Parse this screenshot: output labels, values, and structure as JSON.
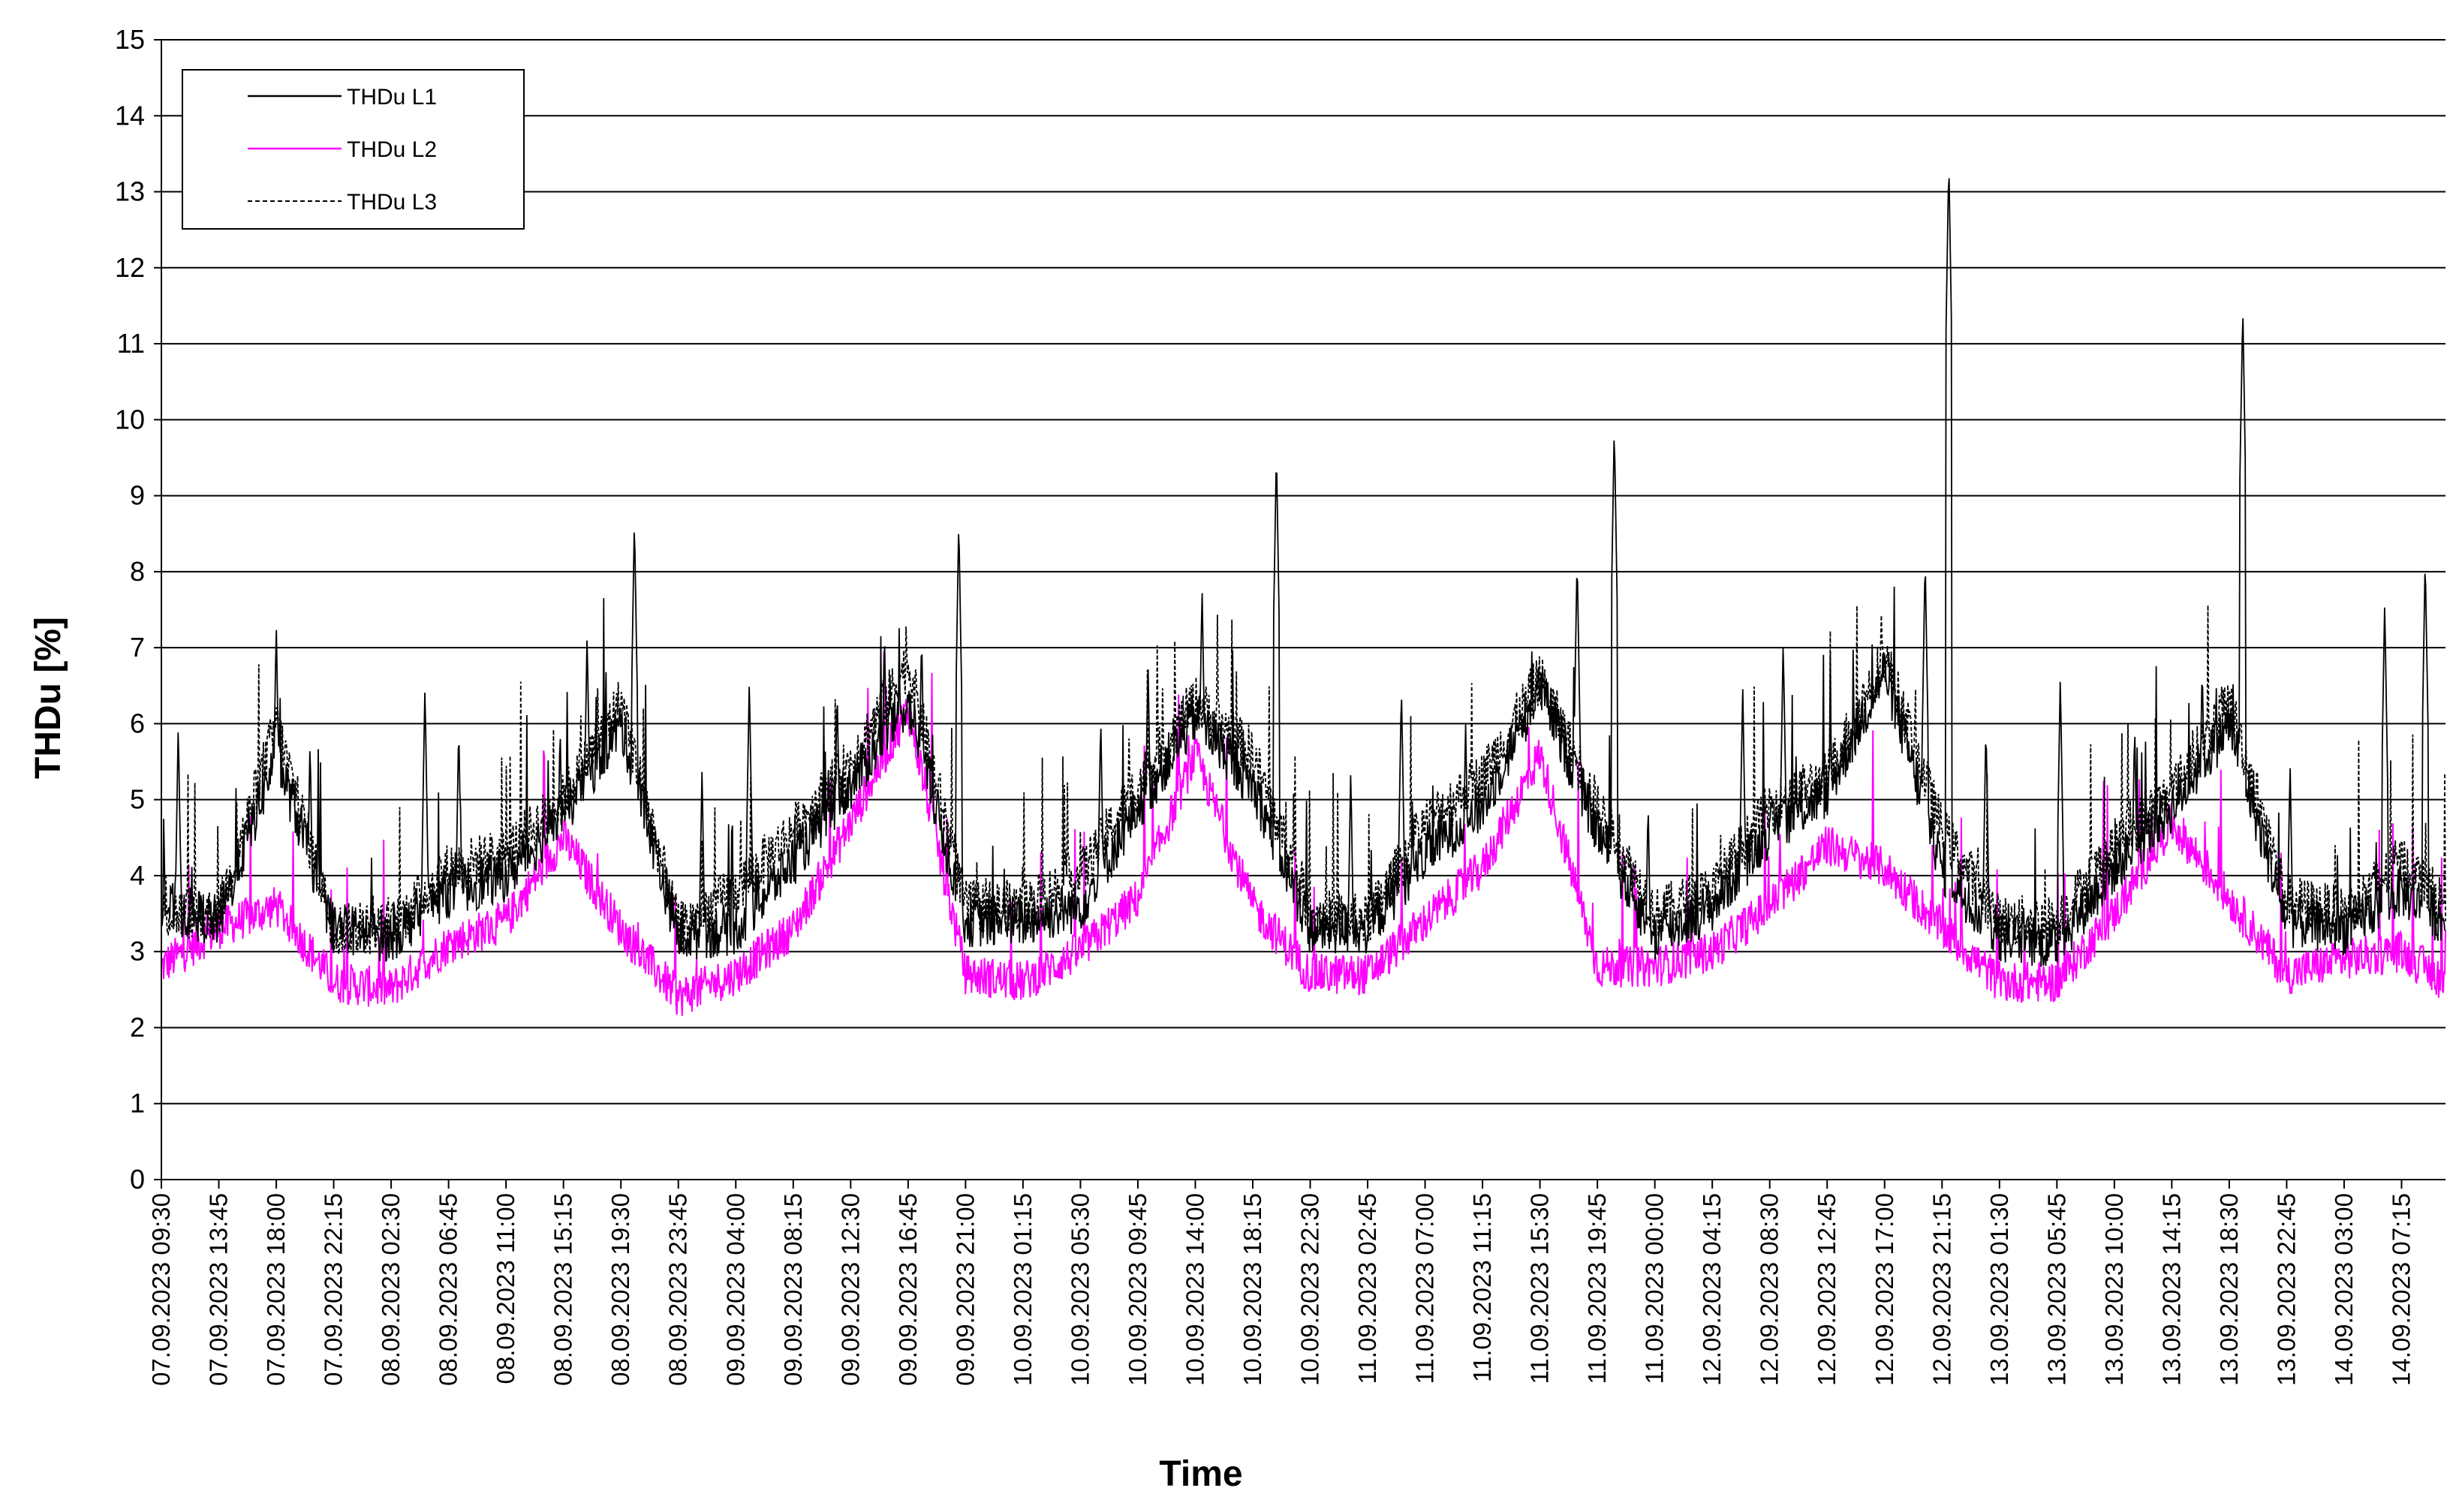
{
  "chart_data": {
    "type": "line",
    "xlabel": "Time",
    "ylabel": "THDu [%]",
    "ylim": [
      0,
      15
    ],
    "yticks": [
      0,
      1,
      2,
      3,
      4,
      5,
      6,
      7,
      8,
      9,
      10,
      11,
      12,
      13,
      14,
      15
    ],
    "xlim": [
      "07.09.2023 09:30",
      "14.09.2023 10:30"
    ],
    "x_tick_interval_minutes": 255,
    "x_tick_labels": [
      "07.09.2023 09:30",
      "07.09.2023 13:45",
      "07.09.2023 18:00",
      "07.09.2023 22:15",
      "08.09.2023 02:30",
      "08.09.2023 06:45",
      "08.09.2023 11:00",
      "08.09.2023 15:15",
      "08.09.2023 19:30",
      "08.09.2023 23:45",
      "09.09.2023 04:00",
      "09.09.2023 08:15",
      "09.09.2023 12:30",
      "09.09.2023 16:45",
      "09.09.2023 21:00",
      "10.09.2023 01:15",
      "10.09.2023 05:30",
      "10.09.2023 09:45",
      "10.09.2023 14:00",
      "10.09.2023 18:15",
      "10.09.2023 22:30",
      "11.09.2023 02:45",
      "11.09.2023 07:00",
      "11.09.2023 11:15",
      "11.09.2023 15:30",
      "11.09.2023 19:45",
      "11.09.2023 00:00",
      "12.09.2023 04:15",
      "12.09.2023 08:30",
      "12.09.2023 12:45",
      "12.09.2023 17:00",
      "12.09.2023 21:15",
      "13.09.2023 01:30",
      "13.09.2023 05:45",
      "13.09.2023 10:00",
      "13.09.2023 14:15",
      "13.09.2023 18:30",
      "13.09.2023 22:45",
      "14.09.2023 03:00",
      "14.09.2023 07:15"
    ],
    "grid": "horizontal",
    "legend_position": "top-left",
    "series": [
      {
        "name": "THDu L1",
        "color": "#000000",
        "style": "solid",
        "baseline": [
          [
            "07.09.2023 09:30",
            3.6
          ],
          [
            "07.09.2023 13:45",
            3.4
          ],
          [
            "07.09.2023 18:00",
            5.6
          ],
          [
            "07.09.2023 22:15",
            3.3
          ],
          [
            "08.09.2023 02:30",
            3.2
          ],
          [
            "08.09.2023 06:45",
            3.8
          ],
          [
            "08.09.2023 11:00",
            4.0
          ],
          [
            "08.09.2023 15:15",
            4.8
          ],
          [
            "08.09.2023 19:30",
            6.0
          ],
          [
            "08.09.2023 23:45",
            3.2
          ],
          [
            "09.09.2023 04:00",
            3.3
          ],
          [
            "09.09.2023 08:15",
            4.2
          ],
          [
            "09.09.2023 12:30",
            5.2
          ],
          [
            "09.09.2023 16:45",
            6.3
          ],
          [
            "09.09.2023 21:00",
            3.4
          ],
          [
            "10.09.2023 01:15",
            3.4
          ],
          [
            "10.09.2023 05:30",
            3.6
          ],
          [
            "10.09.2023 09:45",
            4.9
          ],
          [
            "10.09.2023 14:00",
            6.1
          ],
          [
            "10.09.2023 18:15",
            5.2
          ],
          [
            "10.09.2023 22:30",
            3.3
          ],
          [
            "11.09.2023 02:45",
            3.3
          ],
          [
            "11.09.2023 07:00",
            4.3
          ],
          [
            "11.09.2023 11:15",
            4.9
          ],
          [
            "11.09.2023 15:30",
            6.5
          ],
          [
            "11.09.2023 19:45",
            4.6
          ],
          [
            "11.09.2023 00:00",
            3.2
          ],
          [
            "12.09.2023 04:15",
            3.6
          ],
          [
            "12.09.2023 08:30",
            4.6
          ],
          [
            "12.09.2023 12:45",
            5.1
          ],
          [
            "12.09.2023 17:00",
            6.7
          ],
          [
            "12.09.2023 21:15",
            4.1
          ],
          [
            "13.09.2023 01:30",
            3.2
          ],
          [
            "13.09.2023 05:45",
            3.1
          ],
          [
            "13.09.2023 10:00",
            4.1
          ],
          [
            "13.09.2023 14:15",
            4.9
          ],
          [
            "13.09.2023 18:30",
            6.0
          ],
          [
            "13.09.2023 22:45",
            3.4
          ],
          [
            "14.09.2023 03:00",
            3.3
          ],
          [
            "14.09.2023 07:15",
            3.8
          ],
          [
            "14.09.2023 10:30",
            3.4
          ]
        ],
        "peaks": [
          [
            "07.09.2023 10:45",
            6.0
          ],
          [
            "07.09.2023 18:00",
            7.3
          ],
          [
            "07.09.2023 20:30",
            5.8
          ],
          [
            "08.09.2023 05:00",
            6.5
          ],
          [
            "08.09.2023 07:30",
            6.0
          ],
          [
            "08.09.2023 15:00",
            6.0
          ],
          [
            "08.09.2023 17:00",
            7.2
          ],
          [
            "08.09.2023 20:30",
            8.7
          ],
          [
            "09.09.2023 01:30",
            5.4
          ],
          [
            "09.09.2023 05:00",
            6.6
          ],
          [
            "09.09.2023 11:30",
            6.5
          ],
          [
            "09.09.2023 15:00",
            7.2
          ],
          [
            "09.09.2023 17:45",
            7.2
          ],
          [
            "09.09.2023 20:30",
            8.7
          ],
          [
            "10.09.2023 07:00",
            6.1
          ],
          [
            "10.09.2023 10:30",
            6.8
          ],
          [
            "10.09.2023 14:30",
            7.8
          ],
          [
            "10.09.2023 20:00",
            9.6
          ],
          [
            "11.09.2023 01:30",
            5.4
          ],
          [
            "11.09.2023 05:15",
            6.5
          ],
          [
            "11.09.2023 10:00",
            6.0
          ],
          [
            "11.09.2023 15:30",
            6.6
          ],
          [
            "11.09.2023 18:15",
            8.2
          ],
          [
            "11.09.2023 21:00",
            9.9
          ],
          [
            "11.09.2023 23:30",
            5.0
          ],
          [
            "12.09.2023 06:30",
            6.5
          ],
          [
            "12.09.2023 09:30",
            7.1
          ],
          [
            "12.09.2023 13:00",
            6.2
          ],
          [
            "12.09.2023 20:00",
            8.2
          ],
          [
            "12.09.2023 21:45",
            13.4
          ],
          [
            "13.09.2023 00:30",
            6.0
          ],
          [
            "13.09.2023 06:00",
            6.6
          ],
          [
            "13.09.2023 11:30",
            6.0
          ],
          [
            "13.09.2023 16:30",
            6.8
          ],
          [
            "13.09.2023 19:30",
            11.5
          ],
          [
            "13.09.2023 23:00",
            5.5
          ],
          [
            "14.09.2023 06:00",
            7.6
          ],
          [
            "14.09.2023 09:00",
            8.2
          ]
        ]
      },
      {
        "name": "THDu L2",
        "color": "#ff00ff",
        "style": "solid",
        "baseline": [
          [
            "07.09.2023 09:30",
            2.8
          ],
          [
            "07.09.2023 13:45",
            3.3
          ],
          [
            "07.09.2023 18:00",
            3.6
          ],
          [
            "07.09.2023 22:15",
            2.6
          ],
          [
            "08.09.2023 02:30",
            2.5
          ],
          [
            "08.09.2023 06:45",
            3.1
          ],
          [
            "08.09.2023 11:00",
            3.4
          ],
          [
            "08.09.2023 15:15",
            4.5
          ],
          [
            "08.09.2023 19:30",
            3.3
          ],
          [
            "08.09.2023 23:45",
            2.4
          ],
          [
            "09.09.2023 04:00",
            2.7
          ],
          [
            "09.09.2023 08:15",
            3.3
          ],
          [
            "09.09.2023 12:30",
            4.7
          ],
          [
            "09.09.2023 16:45",
            6.2
          ],
          [
            "09.09.2023 21:00",
            2.7
          ],
          [
            "10.09.2023 01:15",
            2.6
          ],
          [
            "10.09.2023 05:30",
            3.0
          ],
          [
            "10.09.2023 09:45",
            3.7
          ],
          [
            "10.09.2023 14:00",
            5.6
          ],
          [
            "10.09.2023 18:15",
            3.6
          ],
          [
            "10.09.2023 22:30",
            2.7
          ],
          [
            "11.09.2023 02:45",
            2.7
          ],
          [
            "11.09.2023 07:00",
            3.4
          ],
          [
            "11.09.2023 11:15",
            4.1
          ],
          [
            "11.09.2023 15:30",
            5.6
          ],
          [
            "11.09.2023 19:45",
            2.8
          ],
          [
            "11.09.2023 00:00",
            2.8
          ],
          [
            "12.09.2023 04:15",
            3.0
          ],
          [
            "12.09.2023 08:30",
            3.6
          ],
          [
            "12.09.2023 12:45",
            4.4
          ],
          [
            "12.09.2023 17:00",
            4.1
          ],
          [
            "12.09.2023 21:15",
            3.3
          ],
          [
            "13.09.2023 01:30",
            2.6
          ],
          [
            "13.09.2023 05:45",
            2.6
          ],
          [
            "13.09.2023 10:00",
            3.5
          ],
          [
            "13.09.2023 14:15",
            4.7
          ],
          [
            "13.09.2023 18:30",
            3.7
          ],
          [
            "13.09.2023 22:45",
            2.7
          ],
          [
            "14.09.2023 03:00",
            2.9
          ],
          [
            "14.09.2023 07:15",
            3.0
          ],
          [
            "14.09.2023 10:30",
            2.6
          ]
        ]
      },
      {
        "name": "THDu L3",
        "color": "#000000",
        "style": "dashed",
        "baseline": [
          [
            "07.09.2023 09:30",
            3.5
          ],
          [
            "07.09.2023 13:45",
            3.5
          ],
          [
            "07.09.2023 18:00",
            6.0
          ],
          [
            "07.09.2023 22:15",
            3.3
          ],
          [
            "08.09.2023 02:30",
            3.3
          ],
          [
            "08.09.2023 06:45",
            4.1
          ],
          [
            "08.09.2023 11:00",
            4.3
          ],
          [
            "08.09.2023 15:15",
            5.0
          ],
          [
            "08.09.2023 19:30",
            6.3
          ],
          [
            "08.09.2023 23:45",
            3.3
          ],
          [
            "09.09.2023 04:00",
            3.8
          ],
          [
            "09.09.2023 08:15",
            4.6
          ],
          [
            "09.09.2023 12:30",
            5.5
          ],
          [
            "09.09.2023 16:45",
            6.8
          ],
          [
            "09.09.2023 21:00",
            3.6
          ],
          [
            "10.09.2023 01:15",
            3.6
          ],
          [
            "10.09.2023 05:30",
            4.0
          ],
          [
            "10.09.2023 09:45",
            5.2
          ],
          [
            "10.09.2023 14:00",
            6.3
          ],
          [
            "10.09.2023 18:15",
            5.6
          ],
          [
            "10.09.2023 22:30",
            3.5
          ],
          [
            "11.09.2023 02:45",
            3.4
          ],
          [
            "11.09.2023 07:00",
            4.7
          ],
          [
            "11.09.2023 11:15",
            5.3
          ],
          [
            "11.09.2023 15:30",
            6.6
          ],
          [
            "11.09.2023 19:45",
            4.9
          ],
          [
            "11.09.2023 00:00",
            3.5
          ],
          [
            "12.09.2023 04:15",
            3.8
          ],
          [
            "12.09.2023 08:30",
            4.9
          ],
          [
            "12.09.2023 12:45",
            5.3
          ],
          [
            "12.09.2023 17:00",
            6.9
          ],
          [
            "12.09.2023 21:15",
            4.6
          ],
          [
            "13.09.2023 01:30",
            3.4
          ],
          [
            "13.09.2023 05:45",
            3.4
          ],
          [
            "13.09.2023 10:00",
            4.4
          ],
          [
            "13.09.2023 14:15",
            5.1
          ],
          [
            "13.09.2023 18:30",
            6.3
          ],
          [
            "13.09.2023 22:45",
            3.7
          ],
          [
            "14.09.2023 03:00",
            3.5
          ],
          [
            "14.09.2023 07:15",
            4.2
          ],
          [
            "14.09.2023 10:30",
            3.6
          ]
        ]
      }
    ]
  }
}
